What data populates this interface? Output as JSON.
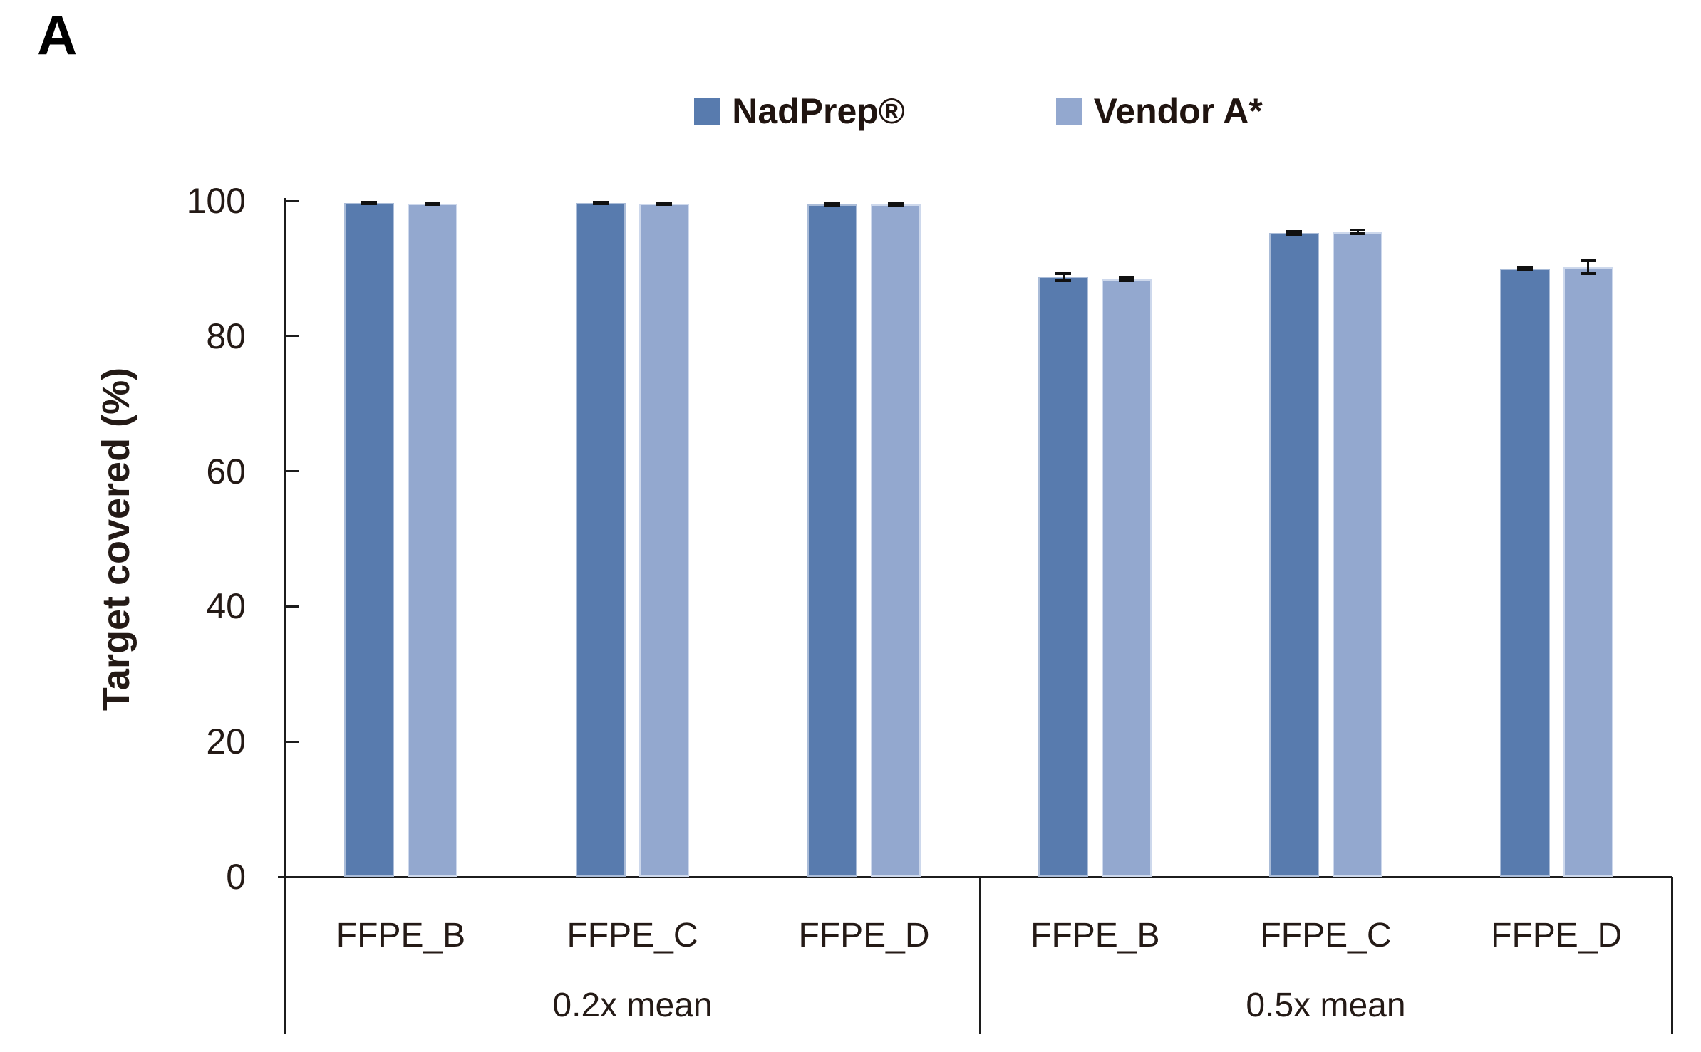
{
  "panel_label": "A",
  "legend": {
    "items": [
      {
        "label": "NadPrep®",
        "swatch_color": "#587bae"
      },
      {
        "label": "Vendor A*",
        "swatch_color": "#93a8cf"
      }
    ]
  },
  "y_axis": {
    "title": "Target covered (%)",
    "tick_labels": [
      "0",
      "20",
      "40",
      "60",
      "80",
      "100"
    ]
  },
  "chart_data": {
    "type": "bar",
    "title": "",
    "xlabel": "",
    "ylabel": "Target covered (%)",
    "ylim": [
      0,
      100
    ],
    "y_ticks": [
      0,
      20,
      40,
      60,
      80,
      100
    ],
    "grid": false,
    "legend_position": "top",
    "groups": [
      {
        "label": "0.2x mean",
        "categories": [
          "FFPE_B",
          "FFPE_C",
          "FFPE_D"
        ]
      },
      {
        "label": "0.5x mean",
        "categories": [
          "FFPE_B",
          "FFPE_C",
          "FFPE_D"
        ]
      }
    ],
    "series": [
      {
        "name": "NadPrep®",
        "color": "#587bae",
        "values": [
          99.7,
          99.7,
          99.5,
          88.7,
          95.3,
          90.0
        ],
        "errors": [
          0.1,
          0.1,
          0.1,
          0.5,
          0.2,
          0.15
        ]
      },
      {
        "name": "Vendor A*",
        "color": "#93a8cf",
        "values": [
          99.6,
          99.6,
          99.5,
          88.4,
          95.4,
          90.2
        ],
        "errors": [
          0.1,
          0.1,
          0.1,
          0.2,
          0.25,
          0.9
        ]
      }
    ]
  }
}
